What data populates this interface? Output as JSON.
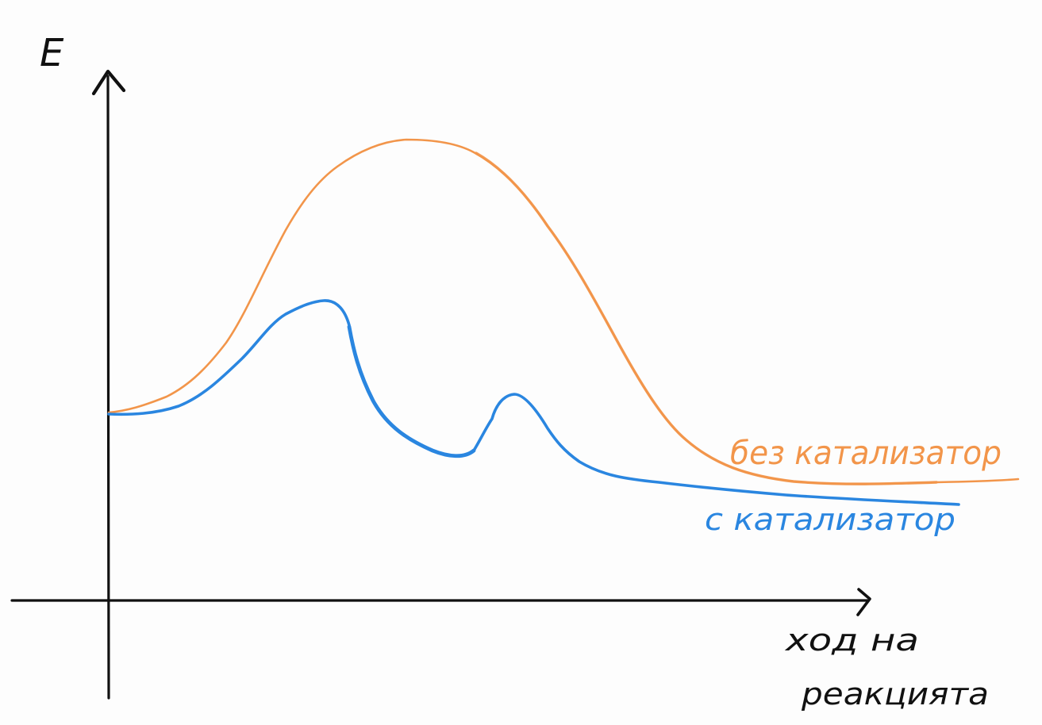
{
  "diagram": {
    "y_axis_label": "E",
    "x_axis_label_line1": "ход на",
    "x_axis_label_line2": "реакцията",
    "curves": [
      {
        "id": "uncatalyzed",
        "label": "без катализатор",
        "color": "#f2954a",
        "peaks": 1
      },
      {
        "id": "catalyzed",
        "label": "с катализатор",
        "color": "#2a86e0",
        "peaks": 2
      }
    ],
    "axis_color": "#111111"
  }
}
